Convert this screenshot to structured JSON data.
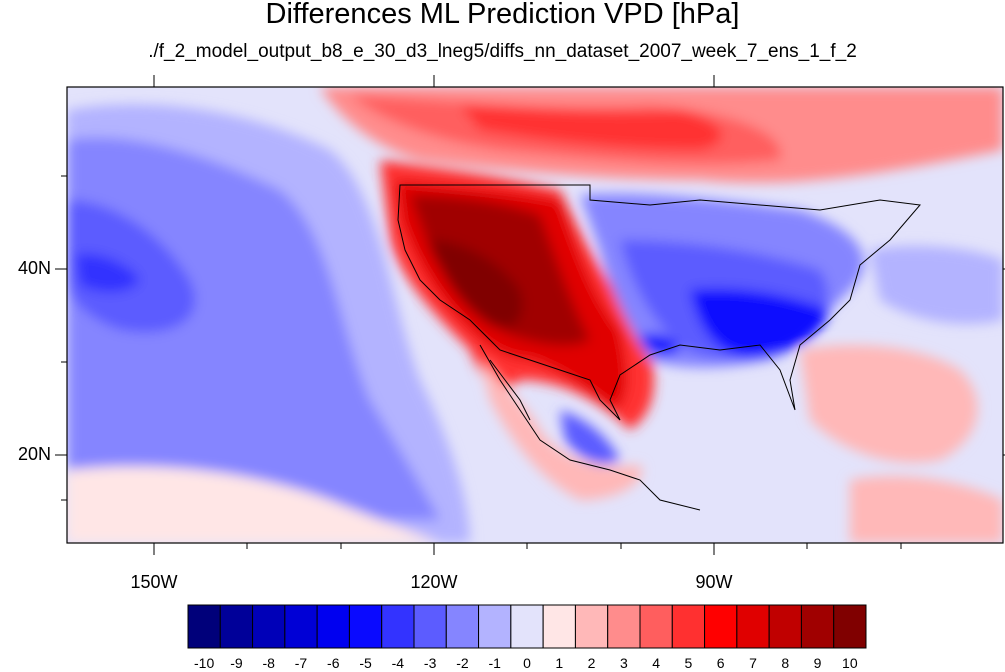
{
  "title": "Differences ML Prediction VPD [hPa]",
  "subtitle": "./f_2_model_output_b8_e_30_d3_lneg5/diffs_nn_dataset_2007_week_7_ens_1_f_2",
  "lat_labels": [
    "40N",
    "20N"
  ],
  "lon_labels": [
    "150W",
    "120W",
    "90W"
  ],
  "colorbar": {
    "labels": [
      "-10",
      "-9",
      "-8",
      "-7",
      "-6",
      "-5",
      "-4",
      "-3",
      "-2",
      "-1",
      "0",
      "1",
      "2",
      "3",
      "4",
      "5",
      "6",
      "7",
      "8",
      "9",
      "10"
    ],
    "colors": [
      "#00007a",
      "#000099",
      "#0000b8",
      "#0000d6",
      "#0000f0",
      "#0a0aff",
      "#3333ff",
      "#5c5cff",
      "#8585ff",
      "#b3b3ff",
      "#e3e3fb",
      "#ffe6e6",
      "#ffb8b8",
      "#ff8c8c",
      "#ff5e5e",
      "#ff3030",
      "#ff0000",
      "#e00000",
      "#c00000",
      "#a00000",
      "#800000"
    ]
  },
  "map_extent": {
    "lon": [
      -160,
      -60
    ],
    "lat": [
      10,
      60
    ]
  }
}
